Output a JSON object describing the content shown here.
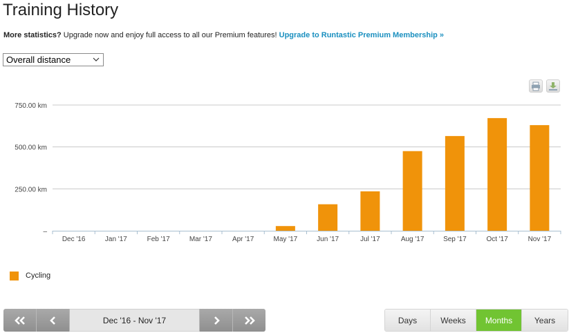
{
  "header": {
    "title": "Training History"
  },
  "promo": {
    "lead": "More statistics?",
    "text": " Upgrade now and enjoy full access to all our Premium features! ",
    "link": "Upgrade to Runtastic Premium Membership »"
  },
  "metric_select": {
    "value": "Overall distance"
  },
  "toolbar": {
    "print_icon": "printer-icon",
    "download_icon": "download-icon"
  },
  "chart_data": {
    "type": "bar",
    "categories": [
      "Dec '16",
      "Jan '17",
      "Feb '17",
      "Mar '17",
      "Apr '17",
      "May '17",
      "Jun '17",
      "Jul '17",
      "Aug '17",
      "Sep '17",
      "Oct '17",
      "Nov '17"
    ],
    "series": [
      {
        "name": "Cycling",
        "color": "#f0930a",
        "values": [
          0,
          0,
          0,
          0,
          0,
          28,
          158,
          235,
          475,
          565,
          672,
          630
        ]
      }
    ],
    "y_ticks": [
      {
        "value": 0,
        "label": "–"
      },
      {
        "value": 250,
        "label": "250.00 km"
      },
      {
        "value": 500,
        "label": "500.00 km"
      },
      {
        "value": 750,
        "label": "750.00 km"
      }
    ],
    "ylim": [
      0,
      750
    ],
    "title": "",
    "xlabel": "",
    "ylabel": "",
    "grid": true,
    "legend": "bottom-left"
  },
  "legend": {
    "label": "Cycling",
    "color": "#f0930a"
  },
  "pager": {
    "range_label": "Dec '16 - Nov '17",
    "first_icon": "double-chevron-left-icon",
    "prev_icon": "chevron-left-icon",
    "next_icon": "chevron-right-icon",
    "last_icon": "double-chevron-right-icon"
  },
  "periods": [
    {
      "label": "Days",
      "active": false
    },
    {
      "label": "Weeks",
      "active": false
    },
    {
      "label": "Months",
      "active": true
    },
    {
      "label": "Years",
      "active": false
    }
  ]
}
